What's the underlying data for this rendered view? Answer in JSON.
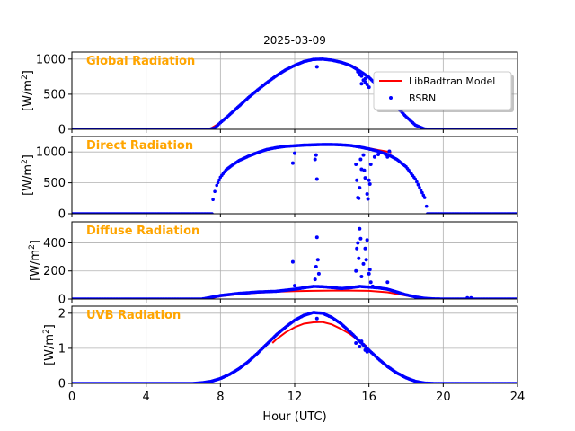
{
  "chart_data": {
    "type": "line",
    "title": "2025-03-09",
    "xlabel": "Hour (UTC)",
    "xlim": [
      0,
      24
    ],
    "xticks": [
      0,
      4,
      8,
      12,
      16,
      20,
      24
    ],
    "xtick_labels": [
      "0",
      "4",
      "8",
      "12",
      "16",
      "20",
      "24"
    ],
    "grid": true,
    "legend": {
      "placement": "top-right of first panel",
      "entries": [
        {
          "name": "LibRadtran Model",
          "color": "#ff0000",
          "style": "line"
        },
        {
          "name": "BSRN",
          "color": "#0000ff",
          "style": "dots"
        }
      ]
    },
    "panels": [
      {
        "label": "Global Radiation",
        "ylabel_main": "[W/m",
        "ylabel_sup": "2",
        "ylabel_end": "]",
        "ylim": [
          0,
          1100
        ],
        "yticks": [
          0,
          500,
          1000
        ],
        "ytick_labels": [
          "0",
          "500",
          "1000"
        ],
        "model_end": 15.4,
        "model": [
          [
            7.4,
            0
          ],
          [
            8,
            95
          ],
          [
            9,
            330
          ],
          [
            10,
            560
          ],
          [
            11,
            760
          ],
          [
            12,
            910
          ],
          [
            12.5,
            965
          ],
          [
            13,
            995
          ],
          [
            13.5,
            1000
          ],
          [
            14,
            985
          ],
          [
            14.5,
            955
          ],
          [
            15,
            910
          ],
          [
            15.4,
            865
          ]
        ],
        "bsrn": [
          [
            0,
            0
          ],
          [
            7.4,
            0
          ],
          [
            7.7,
            20
          ],
          [
            8,
            95
          ],
          [
            8.5,
            210
          ],
          [
            9,
            330
          ],
          [
            9.5,
            450
          ],
          [
            10,
            560
          ],
          [
            10.5,
            665
          ],
          [
            11,
            760
          ],
          [
            11.5,
            845
          ],
          [
            12,
            910
          ],
          [
            12.5,
            965
          ],
          [
            13,
            995
          ],
          [
            13.5,
            1000
          ],
          [
            14,
            985
          ],
          [
            14.5,
            955
          ],
          [
            15,
            910
          ],
          [
            15.5,
            830
          ],
          [
            16,
            740
          ],
          [
            16.5,
            610
          ],
          [
            17,
            470
          ],
          [
            17.5,
            320
          ],
          [
            18,
            180
          ],
          [
            18.5,
            60
          ],
          [
            19,
            5
          ],
          [
            19.3,
            0
          ],
          [
            24,
            0
          ]
        ],
        "outliers": [
          [
            13.2,
            890
          ],
          [
            15.4,
            820
          ],
          [
            15.5,
            780
          ],
          [
            15.6,
            760
          ],
          [
            15.7,
            700
          ],
          [
            15.8,
            670
          ],
          [
            15.9,
            640
          ],
          [
            16,
            600
          ],
          [
            15.6,
            650
          ],
          [
            15.8,
            720
          ]
        ]
      },
      {
        "label": "Direct Radiation",
        "ylabel_main": "[W/m",
        "ylabel_sup": "2",
        "ylabel_end": "]",
        "ylim": [
          0,
          1250
        ],
        "yticks": [
          0,
          500,
          1000
        ],
        "ytick_labels": [
          "0",
          "500",
          "1000"
        ],
        "model_end": 17.2,
        "model": [
          [
            15.2,
            1090
          ],
          [
            15.6,
            1080
          ],
          [
            16,
            1060
          ],
          [
            16.5,
            1030
          ],
          [
            17,
            1005
          ],
          [
            17.2,
            990
          ]
        ],
        "bsrn": [
          [
            0,
            0
          ],
          [
            7.55,
            0
          ],
          [
            7.6,
            230
          ],
          [
            7.7,
            360
          ],
          [
            7.8,
            460
          ],
          [
            8,
            590
          ],
          [
            8.3,
            710
          ],
          [
            8.7,
            800
          ],
          [
            9,
            860
          ],
          [
            9.5,
            930
          ],
          [
            10,
            990
          ],
          [
            10.5,
            1040
          ],
          [
            11,
            1070
          ],
          [
            11.5,
            1090
          ],
          [
            12,
            1100
          ],
          [
            12.5,
            1110
          ],
          [
            13,
            1115
          ],
          [
            13.5,
            1120
          ],
          [
            14,
            1120
          ],
          [
            14.5,
            1115
          ],
          [
            15,
            1105
          ],
          [
            15.5,
            1080
          ],
          [
            16,
            1050
          ],
          [
            16.5,
            1010
          ],
          [
            17,
            960
          ],
          [
            17.5,
            880
          ],
          [
            18,
            760
          ],
          [
            18.5,
            560
          ],
          [
            18.8,
            380
          ],
          [
            19,
            260
          ],
          [
            19.1,
            120
          ],
          [
            19.15,
            0
          ],
          [
            24,
            0
          ]
        ],
        "outliers": [
          [
            11.9,
            820
          ],
          [
            12,
            980
          ],
          [
            13.1,
            880
          ],
          [
            13.15,
            950
          ],
          [
            13.2,
            560
          ],
          [
            15.3,
            800
          ],
          [
            15.35,
            540
          ],
          [
            15.4,
            260
          ],
          [
            15.45,
            250
          ],
          [
            15.5,
            420
          ],
          [
            15.6,
            720
          ],
          [
            15.7,
            950
          ],
          [
            15.75,
            700
          ],
          [
            15.8,
            580
          ],
          [
            15.9,
            320
          ],
          [
            15.95,
            240
          ],
          [
            16,
            540
          ],
          [
            16.05,
            480
          ],
          [
            16.1,
            800
          ],
          [
            16.3,
            920
          ],
          [
            16.5,
            960
          ],
          [
            16.6,
            990
          ],
          [
            16.9,
            960
          ],
          [
            17,
            920
          ],
          [
            17.1,
            1010
          ],
          [
            15.55,
            880
          ]
        ]
      },
      {
        "label": "Diffuse Radiation",
        "ylabel_main": "[W/m",
        "ylabel_sup": "2",
        "ylabel_end": "]",
        "ylim": [
          0,
          550
        ],
        "yticks": [
          0,
          200,
          400
        ],
        "ytick_labels": [
          "0",
          "200",
          "400"
        ],
        "model_end": 19.3,
        "model": [
          [
            7.3,
            0
          ],
          [
            8,
            20
          ],
          [
            9,
            35
          ],
          [
            10,
            45
          ],
          [
            11,
            52
          ],
          [
            12,
            56
          ],
          [
            13,
            58
          ],
          [
            14,
            60
          ],
          [
            15,
            60
          ],
          [
            16,
            58
          ],
          [
            17,
            48
          ],
          [
            18,
            25
          ],
          [
            19,
            2
          ],
          [
            19.3,
            0
          ]
        ],
        "bsrn": [
          [
            0,
            0
          ],
          [
            7,
            0
          ],
          [
            7.5,
            12
          ],
          [
            8,
            25
          ],
          [
            9,
            40
          ],
          [
            10,
            50
          ],
          [
            11,
            55
          ],
          [
            12,
            70
          ],
          [
            12.5,
            80
          ],
          [
            13,
            90
          ],
          [
            13.5,
            88
          ],
          [
            14,
            82
          ],
          [
            14.5,
            75
          ],
          [
            15,
            80
          ],
          [
            15.5,
            90
          ],
          [
            16,
            85
          ],
          [
            16.5,
            80
          ],
          [
            17,
            70
          ],
          [
            17.5,
            50
          ],
          [
            18,
            30
          ],
          [
            18.5,
            15
          ],
          [
            19,
            5
          ],
          [
            19.5,
            1
          ],
          [
            20,
            0
          ],
          [
            24,
            0
          ]
        ],
        "outliers": [
          [
            11.9,
            265
          ],
          [
            12,
            95
          ],
          [
            13.1,
            140
          ],
          [
            13.15,
            230
          ],
          [
            13.2,
            440
          ],
          [
            13.25,
            280
          ],
          [
            13.3,
            180
          ],
          [
            15.3,
            200
          ],
          [
            15.35,
            360
          ],
          [
            15.4,
            400
          ],
          [
            15.45,
            290
          ],
          [
            15.5,
            500
          ],
          [
            15.55,
            430
          ],
          [
            15.6,
            160
          ],
          [
            15.7,
            250
          ],
          [
            15.8,
            360
          ],
          [
            15.85,
            280
          ],
          [
            15.9,
            420
          ],
          [
            16,
            180
          ],
          [
            16.05,
            210
          ],
          [
            16.1,
            120
          ],
          [
            16.2,
            90
          ],
          [
            17,
            120
          ],
          [
            21.3,
            8
          ],
          [
            21.5,
            8
          ]
        ]
      },
      {
        "label": "UVB Radiation",
        "ylabel_main": "[W/m",
        "ylabel_sup": "2",
        "ylabel_end": "]",
        "ylim": [
          0,
          2.2
        ],
        "yticks": [
          0,
          1,
          2
        ],
        "ytick_labels": [
          "0",
          "1",
          "2"
        ],
        "model_end": 15.9,
        "model": [
          [
            10.8,
            1.15
          ],
          [
            11,
            1.25
          ],
          [
            11.5,
            1.45
          ],
          [
            12,
            1.6
          ],
          [
            12.5,
            1.7
          ],
          [
            13,
            1.74
          ],
          [
            13.5,
            1.75
          ],
          [
            14,
            1.68
          ],
          [
            14.5,
            1.55
          ],
          [
            15,
            1.4
          ],
          [
            15.5,
            1.2
          ],
          [
            15.9,
            1.05
          ]
        ],
        "bsrn": [
          [
            0,
            0
          ],
          [
            6.5,
            0
          ],
          [
            7,
            0.02
          ],
          [
            7.5,
            0.06
          ],
          [
            8,
            0.14
          ],
          [
            8.5,
            0.26
          ],
          [
            9,
            0.42
          ],
          [
            9.5,
            0.62
          ],
          [
            10,
            0.86
          ],
          [
            10.5,
            1.12
          ],
          [
            11,
            1.38
          ],
          [
            11.5,
            1.6
          ],
          [
            12,
            1.8
          ],
          [
            12.5,
            1.94
          ],
          [
            13,
            2.02
          ],
          [
            13.5,
            2.0
          ],
          [
            14,
            1.88
          ],
          [
            14.5,
            1.7
          ],
          [
            15,
            1.46
          ],
          [
            15.5,
            1.2
          ],
          [
            16,
            0.95
          ],
          [
            16.5,
            0.7
          ],
          [
            17,
            0.48
          ],
          [
            17.5,
            0.3
          ],
          [
            18,
            0.16
          ],
          [
            18.5,
            0.06
          ],
          [
            19,
            0.01
          ],
          [
            19.5,
            0
          ],
          [
            24,
            0
          ]
        ],
        "outliers": [
          [
            13.2,
            1.85
          ],
          [
            15.3,
            1.15
          ],
          [
            15.5,
            1.05
          ],
          [
            15.6,
            1.2
          ],
          [
            15.7,
            1.1
          ],
          [
            15.8,
            0.95
          ],
          [
            15.9,
            0.9
          ]
        ]
      }
    ]
  }
}
